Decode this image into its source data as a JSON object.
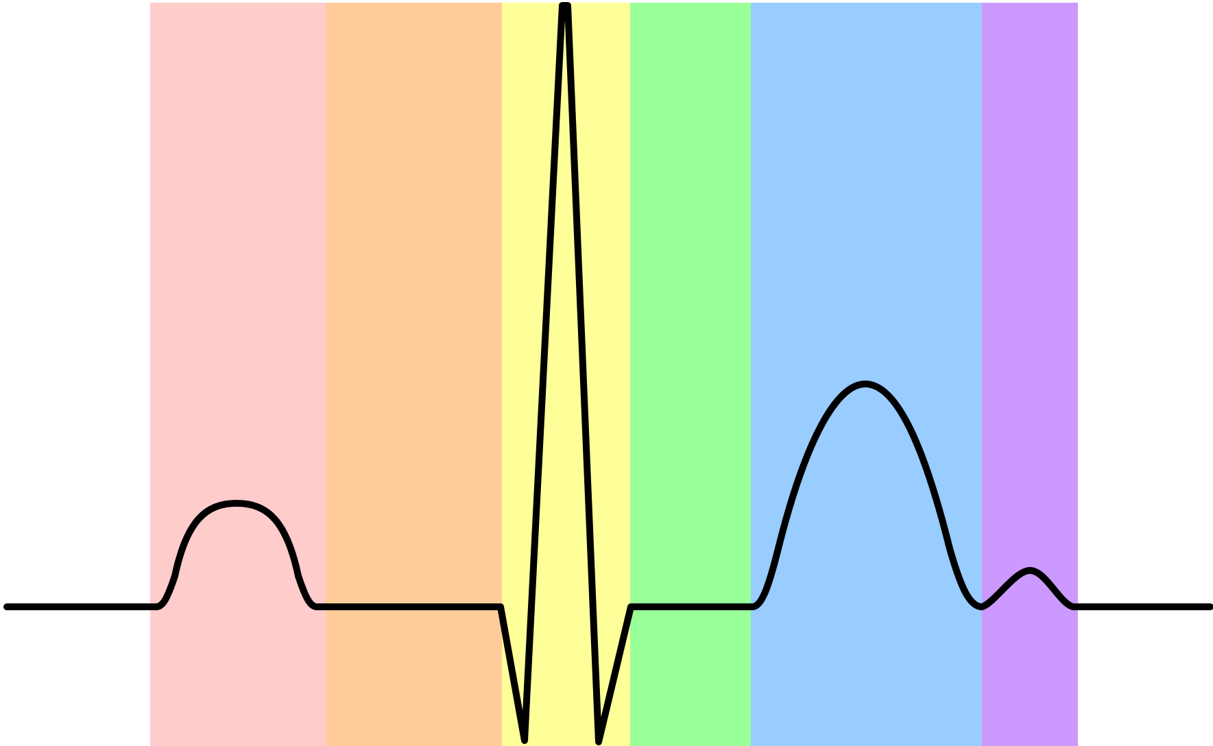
{
  "diagram": {
    "background": "#ffffff",
    "trace_color": "#000000",
    "bands": [
      {
        "color": "#ffcccc"
      },
      {
        "color": "#ffcc99"
      },
      {
        "color": "#ffff99"
      },
      {
        "color": "#99ff99"
      },
      {
        "color": "#99ccff"
      },
      {
        "color": "#cc99ff"
      }
    ]
  }
}
